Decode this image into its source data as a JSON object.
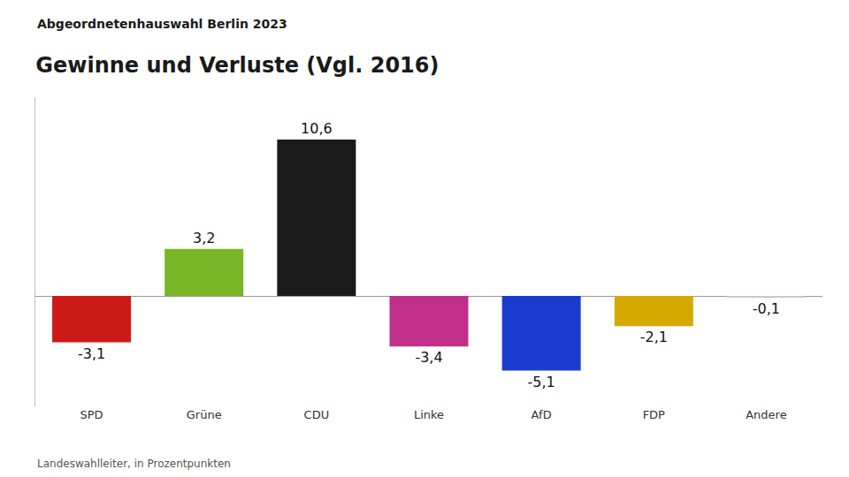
{
  "chart_data": {
    "type": "bar",
    "subtitle": "Abgeordnetenhauswahl Berlin 2023",
    "title": "Gewinne und Verluste (Vgl. 2016)",
    "categories": [
      "SPD",
      "Grüne",
      "CDU",
      "Linke",
      "AfD",
      "FDP",
      "Andere"
    ],
    "values": [
      -3.15,
      3.2,
      10.62,
      -3.44,
      -5.07,
      -2.06,
      -0.1
    ],
    "value_labels": [
      "-3,1",
      "3,2",
      "10,6",
      "-3,4",
      "-5,1",
      "-2,1",
      "-0,1"
    ],
    "data_labels": true,
    "colors": [
      "#cc1a18",
      "#7ab527",
      "#1a1a1a",
      "#c0308a",
      "#1a3bcc",
      "#d4aa00",
      "#c8c8c8"
    ],
    "ylim": [
      -7.5,
      13.5
    ],
    "grid": false,
    "tick_labels": "x",
    "annotations": [
      "Landeswahlleiter, in Prozentpunkten"
    ]
  }
}
